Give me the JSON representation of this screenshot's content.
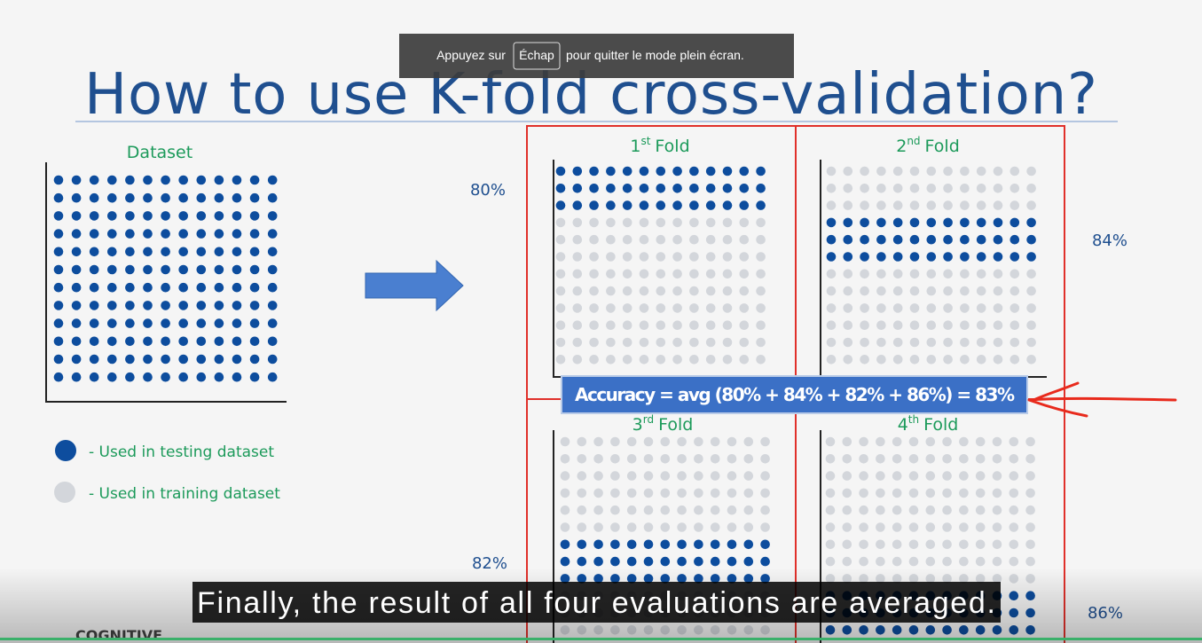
{
  "fullscreen_notice": {
    "before": "Appuyez sur",
    "key": "Échap",
    "after": "pour quitter le mode plein écran."
  },
  "slide": {
    "title": "How to use K-fold cross-validation?",
    "dataset_label": "Dataset",
    "folds": [
      {
        "number": "1",
        "suffix": "st",
        "label": "Fold",
        "accuracy": "80%"
      },
      {
        "number": "2",
        "suffix": "nd",
        "label": "Fold",
        "accuracy": "84%"
      },
      {
        "number": "3",
        "suffix": "rd",
        "label": "Fold",
        "accuracy": "82%"
      },
      {
        "number": "4",
        "suffix": "th",
        "label": "Fold",
        "accuracy": "86%"
      }
    ],
    "accuracy_formula": "Accuracy = avg (80% + 84% + 82% + 86%) = 83%",
    "legend": {
      "testing": "- Used in testing dataset",
      "training": "- Used in training dataset"
    },
    "logo": "COGNITIVE"
  },
  "caption": "Finally, the result of all four evaluations are averaged."
}
